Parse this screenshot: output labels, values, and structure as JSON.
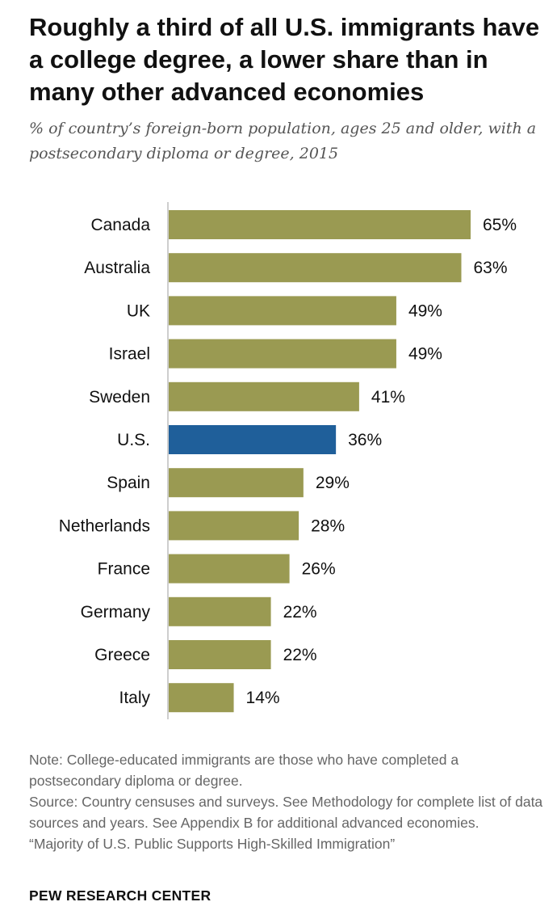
{
  "title": "Roughly a third of all U.S. immigrants have a college degree, a lower share than in many other advanced economies",
  "subtitle": "% of country’s foreign-born population, ages 25 and older, with a postsecondary diploma or degree, 2015",
  "chart_data": {
    "type": "bar",
    "orientation": "horizontal",
    "categories": [
      "Canada",
      "Australia",
      "UK",
      "Israel",
      "Sweden",
      "U.S.",
      "Spain",
      "Netherlands",
      "France",
      "Germany",
      "Greece",
      "Italy"
    ],
    "values": [
      65,
      63,
      49,
      49,
      41,
      36,
      29,
      28,
      26,
      22,
      22,
      14
    ],
    "value_labels": [
      "65%",
      "63%",
      "49%",
      "49%",
      "41%",
      "36%",
      "29%",
      "28%",
      "26%",
      "22%",
      "22%",
      "14%"
    ],
    "highlight": "U.S.",
    "colors": {
      "default": "#9a9a52",
      "highlight": "#1f5f9a",
      "axis": "#bdbdbd"
    },
    "xlim": [
      0,
      65
    ],
    "grid": false,
    "legend": "none"
  },
  "notes": {
    "note": "Note: College-educated immigrants are those who have completed a postsecondary diploma or degree.",
    "source": "Source: Country censuses and surveys. See Methodology for complete list of data sources and years. See Appendix B for additional advanced economies.",
    "report": "“Majority of U.S. Public Supports High-Skilled Immigration”"
  },
  "brand": "PEW RESEARCH CENTER"
}
